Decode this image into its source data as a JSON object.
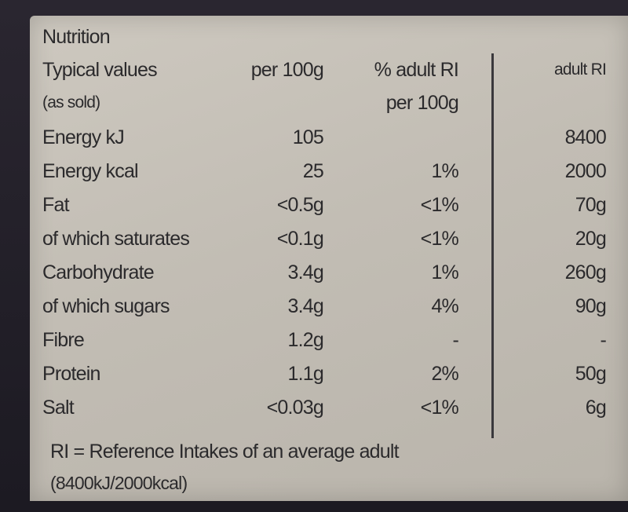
{
  "nutrition": {
    "title": "Nutrition",
    "header": {
      "typical_values": "Typical values",
      "as_sold": "(as sold)",
      "per_100g": "per 100g",
      "pct_adult_ri": "% adult RI",
      "per_100g_2": "per 100g",
      "adult_ri": "adult RI"
    },
    "rows": [
      {
        "name": "Energy kJ",
        "per100g": "105",
        "pct": "",
        "ri": "8400"
      },
      {
        "name": "Energy kcal",
        "per100g": "25",
        "pct": "1%",
        "ri": "2000"
      },
      {
        "name": "Fat",
        "per100g": "<0.5g",
        "pct": "<1%",
        "ri": "70g"
      },
      {
        "name": "of which saturates",
        "per100g": "<0.1g",
        "pct": "<1%",
        "ri": "20g"
      },
      {
        "name": "Carbohydrate",
        "per100g": "3.4g",
        "pct": "1%",
        "ri": "260g"
      },
      {
        "name": "of which sugars",
        "per100g": "3.4g",
        "pct": "4%",
        "ri": "90g"
      },
      {
        "name": "Fibre",
        "per100g": "1.2g",
        "pct": "-",
        "ri": "-"
      },
      {
        "name": "Protein",
        "per100g": "1.1g",
        "pct": "2%",
        "ri": "50g"
      },
      {
        "name": "Salt",
        "per100g": "<0.03g",
        "pct": "<1%",
        "ri": "6g"
      }
    ],
    "footnote_line1": "RI = Reference Intakes of an average adult",
    "footnote_line2": "(8400kJ/2000kcal)"
  }
}
